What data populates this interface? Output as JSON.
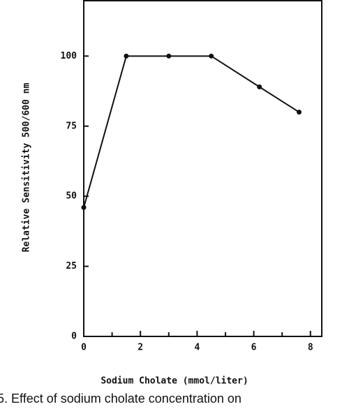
{
  "chart_data": {
    "type": "line",
    "x_label": "Sodium Cholate (mmol/liter)",
    "y_label": "Relative Sensitivity 500/600 nm",
    "caption": "5. Effect of sodium cholate concentration on",
    "x": [
      0,
      1.5,
      3,
      4.5,
      6.2,
      7.6
    ],
    "series": [
      {
        "color": "#111111",
        "values": [
          46,
          100,
          100,
          100,
          89,
          80
        ]
      }
    ],
    "xlim": [
      0,
      8.4
    ],
    "ylim": [
      0,
      120
    ],
    "xticks": [
      0,
      2,
      4,
      6,
      8
    ],
    "xminorticks": [
      1,
      3,
      5,
      7
    ],
    "yticks": [
      0,
      25,
      50,
      75,
      100
    ]
  }
}
